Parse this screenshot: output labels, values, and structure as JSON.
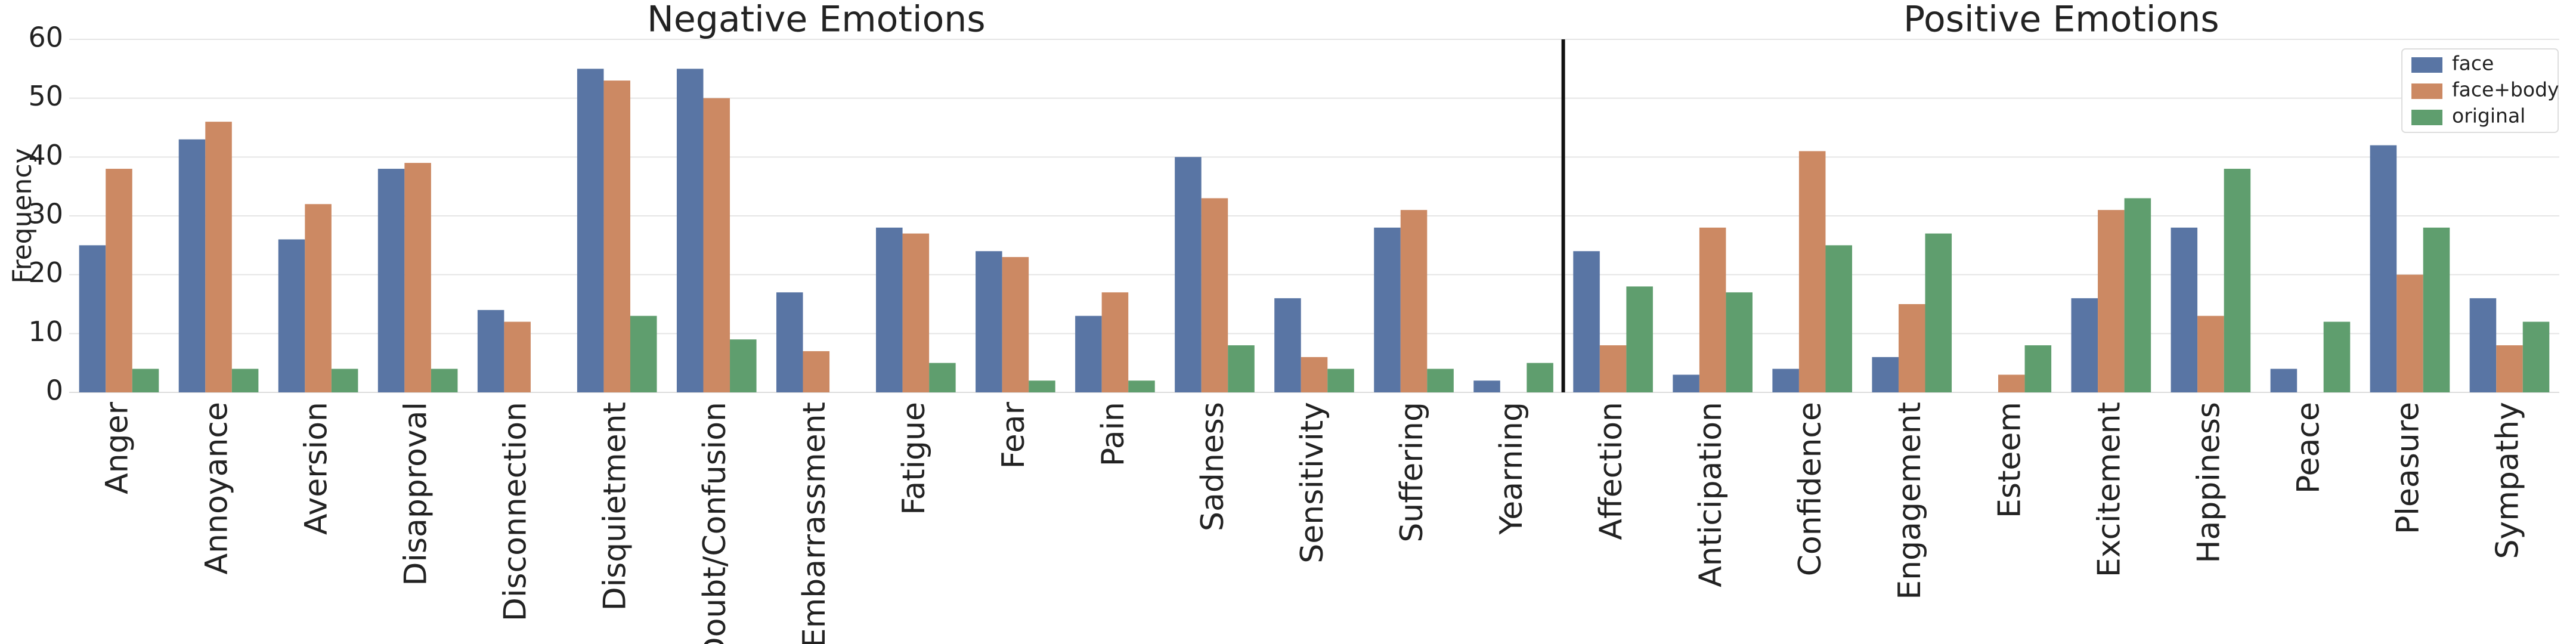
{
  "chart_data": {
    "type": "bar",
    "annotations": [
      "Negative Emotions",
      "Positive Emotions"
    ],
    "y_label": "Frequency",
    "categories": [
      "Anger",
      "Annoyance",
      "Aversion",
      "Disapproval",
      "Disconnection",
      "Disquietment",
      "Doubt/Confusion",
      "Embarrassment",
      "Fatigue",
      "Fear",
      "Pain",
      "Sadness",
      "Sensitivity",
      "Suffering",
      "Yearning",
      "Affection",
      "Anticipation",
      "Confidence",
      "Engagement",
      "Esteem",
      "Excitement",
      "Happiness",
      "Peace",
      "Pleasure",
      "Sympathy"
    ],
    "series": [
      {
        "name": "face",
        "color": "#5975a4",
        "values": [
          25,
          43,
          26,
          38,
          14,
          55,
          55,
          17,
          28,
          24,
          13,
          40,
          16,
          28,
          2,
          24,
          3,
          4,
          6,
          0,
          16,
          28,
          4,
          42,
          16
        ]
      },
      {
        "name": "face+body",
        "color": "#cc8963",
        "values": [
          38,
          46,
          32,
          39,
          12,
          53,
          50,
          7,
          27,
          23,
          17,
          33,
          6,
          31,
          0,
          8,
          28,
          41,
          15,
          3,
          31,
          13,
          0,
          20,
          8
        ]
      },
      {
        "name": "original",
        "color": "#5f9e6e",
        "values": [
          4,
          4,
          4,
          4,
          0,
          13,
          9,
          0,
          5,
          2,
          2,
          8,
          4,
          4,
          5,
          18,
          17,
          25,
          27,
          8,
          33,
          38,
          12,
          28,
          12
        ]
      }
    ],
    "ylim": [
      0,
      60
    ],
    "yticks": [
      0,
      10,
      20,
      30,
      40,
      50,
      60
    ],
    "grid": true,
    "legend": "upper right"
  }
}
